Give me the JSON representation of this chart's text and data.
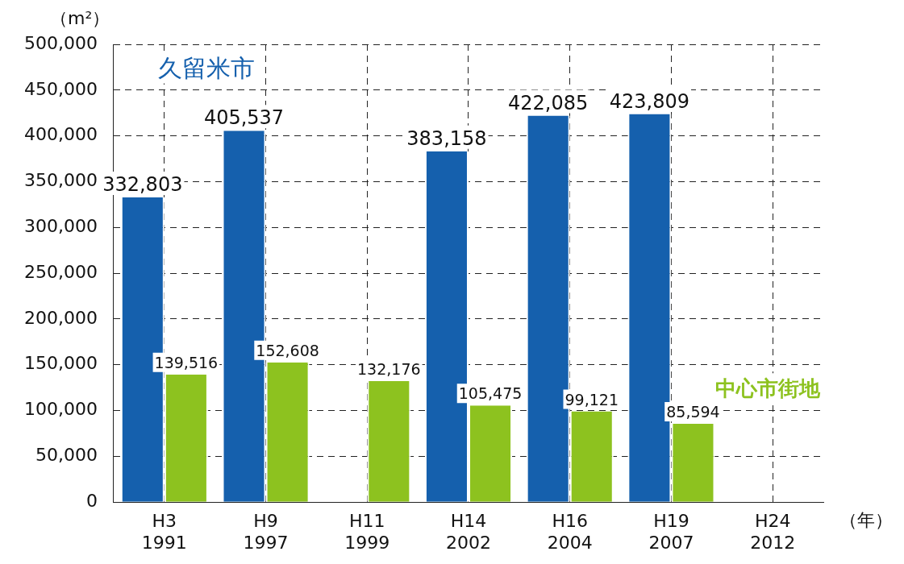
{
  "chart_data": {
    "type": "bar",
    "ylabel": "（m²）",
    "xlabel": "（年）",
    "categories": [
      "H3\n1991",
      "H9\n1997",
      "H11\n1999",
      "H14\n2002",
      "H16\n2004",
      "H19\n2007",
      "H24\n2012"
    ],
    "series": [
      {
        "name": "久留米市",
        "color": "#1560ad",
        "values": [
          332803,
          405537,
          null,
          383158,
          422085,
          423809,
          null
        ],
        "value_labels": [
          "332,803",
          "405,537",
          null,
          "383,158",
          "422,085",
          "423,809",
          null
        ]
      },
      {
        "name": "中心市街地",
        "color": "#8dc21f",
        "values": [
          139516,
          152608,
          132176,
          105475,
          99121,
          85594,
          null
        ],
        "value_labels": [
          "139,516",
          "152,608",
          "132,176",
          "105,475",
          "99,121",
          "85,594",
          null
        ]
      }
    ],
    "ylim": [
      0,
      500000
    ],
    "yticks": [
      0,
      {
        "value": 50000,
        "label": "50,000"
      },
      {
        "value": 100000,
        "label": "100,000"
      },
      {
        "value": 150000,
        "label": "150,000"
      },
      {
        "value": 200000,
        "label": "200,000"
      },
      {
        "value": 250000,
        "label": "250,000"
      },
      {
        "value": 300000,
        "label": "300,000"
      },
      {
        "value": 350000,
        "label": "350,000"
      },
      {
        "value": 400000,
        "label": "400,000"
      },
      {
        "value": 450000,
        "label": "450,000"
      },
      {
        "value": 500000,
        "label": "500,000"
      }
    ],
    "grid": true
  }
}
